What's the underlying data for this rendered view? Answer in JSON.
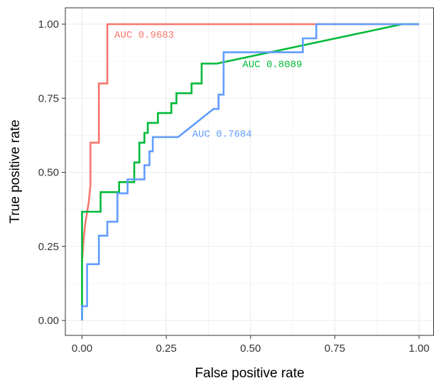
{
  "chart_data": {
    "type": "line",
    "title": "",
    "xlabel": "False positive rate",
    "ylabel": "True positive rate",
    "xlim": [
      0,
      1
    ],
    "ylim": [
      0,
      1
    ],
    "x_ticks": [
      "0.00",
      "0.25",
      "0.50",
      "0.75",
      "1.00"
    ],
    "y_ticks": [
      "0.00",
      "0.25",
      "0.50",
      "0.75",
      "1.00"
    ],
    "grid": true,
    "legend": "none",
    "series": [
      {
        "color": "#f8766d",
        "annotation": "AUC 0.9683",
        "label_at": [
          0.096,
          0.955
        ],
        "points": [
          [
            0,
            0.2
          ],
          [
            0.005,
            0.28
          ],
          [
            0.01,
            0.33
          ],
          [
            0.02,
            0.4
          ],
          [
            0.025,
            0.46
          ],
          [
            0.025,
            0.6
          ],
          [
            0.05,
            0.6
          ],
          [
            0.05,
            0.8
          ],
          [
            0.075,
            0.8
          ],
          [
            0.075,
            1.0
          ],
          [
            1.0,
            1.0
          ]
        ]
      },
      {
        "color": "#00ba38",
        "annotation": "AUC 0.8089",
        "label_at": [
          0.476,
          0.855
        ],
        "points": [
          [
            0,
            0.0
          ],
          [
            0,
            0.367
          ],
          [
            0.055,
            0.367
          ],
          [
            0.055,
            0.433
          ],
          [
            0.11,
            0.433
          ],
          [
            0.11,
            0.467
          ],
          [
            0.155,
            0.467
          ],
          [
            0.155,
            0.533
          ],
          [
            0.17,
            0.533
          ],
          [
            0.17,
            0.6
          ],
          [
            0.185,
            0.6
          ],
          [
            0.185,
            0.633
          ],
          [
            0.195,
            0.633
          ],
          [
            0.195,
            0.667
          ],
          [
            0.225,
            0.667
          ],
          [
            0.225,
            0.7
          ],
          [
            0.265,
            0.7
          ],
          [
            0.265,
            0.733
          ],
          [
            0.28,
            0.733
          ],
          [
            0.28,
            0.767
          ],
          [
            0.325,
            0.767
          ],
          [
            0.325,
            0.8
          ],
          [
            0.355,
            0.8
          ],
          [
            0.355,
            0.867
          ],
          [
            0.4,
            0.867
          ],
          [
            0.95,
            1.0
          ],
          [
            1.0,
            1.0
          ]
        ]
      },
      {
        "color": "#619cff",
        "annotation": "AUC 0.7684",
        "label_at": [
          0.327,
          0.62
        ],
        "points": [
          [
            0,
            0.0
          ],
          [
            0,
            0.048
          ],
          [
            0.015,
            0.048
          ],
          [
            0.015,
            0.19
          ],
          [
            0.05,
            0.19
          ],
          [
            0.05,
            0.286
          ],
          [
            0.075,
            0.286
          ],
          [
            0.075,
            0.333
          ],
          [
            0.105,
            0.333
          ],
          [
            0.105,
            0.429
          ],
          [
            0.135,
            0.429
          ],
          [
            0.135,
            0.476
          ],
          [
            0.185,
            0.476
          ],
          [
            0.185,
            0.524
          ],
          [
            0.2,
            0.524
          ],
          [
            0.2,
            0.571
          ],
          [
            0.21,
            0.571
          ],
          [
            0.21,
            0.619
          ],
          [
            0.285,
            0.619
          ],
          [
            0.39,
            0.714
          ],
          [
            0.405,
            0.714
          ],
          [
            0.405,
            0.762
          ],
          [
            0.42,
            0.762
          ],
          [
            0.42,
            0.905
          ],
          [
            0.655,
            0.905
          ],
          [
            0.655,
            0.952
          ],
          [
            0.695,
            0.952
          ],
          [
            0.695,
            1.0
          ],
          [
            1.0,
            1.0
          ]
        ]
      }
    ]
  }
}
